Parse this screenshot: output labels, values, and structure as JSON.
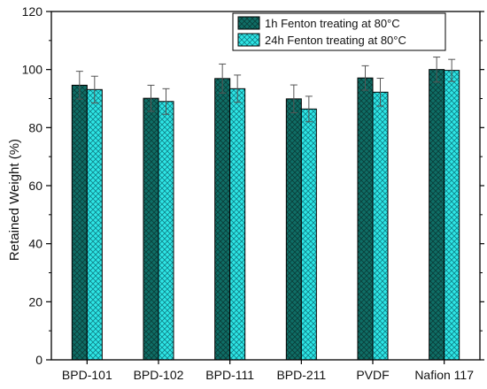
{
  "chart_data": {
    "type": "bar",
    "title": "",
    "xlabel": "",
    "ylabel": "Retained Weight (%)",
    "ylim": [
      0,
      120
    ],
    "yticks": [
      0,
      20,
      40,
      60,
      80,
      100,
      120
    ],
    "categories": [
      "BPD-101",
      "BPD-102",
      "BPD-111",
      "BPD-211",
      "PVDF",
      "Nafion 117"
    ],
    "series": [
      {
        "name": "1h Fenton treating at 80°C",
        "values": [
          94.6,
          90.1,
          96.9,
          89.9,
          97.1,
          100.0
        ],
        "errors": [
          4.8,
          4.5,
          5.0,
          4.8,
          4.2,
          4.3
        ],
        "color": "#0f6e66",
        "pattern": "dark-crosshatch"
      },
      {
        "name": "24h Fenton treating at 80°C",
        "values": [
          93.1,
          89.0,
          93.4,
          86.4,
          92.2,
          99.7
        ],
        "errors": [
          4.6,
          4.4,
          4.7,
          4.4,
          4.8,
          3.8
        ],
        "color": "#2ee6e6",
        "pattern": "light-crosshatch"
      }
    ],
    "grid": false,
    "legend_position": "top-right"
  }
}
